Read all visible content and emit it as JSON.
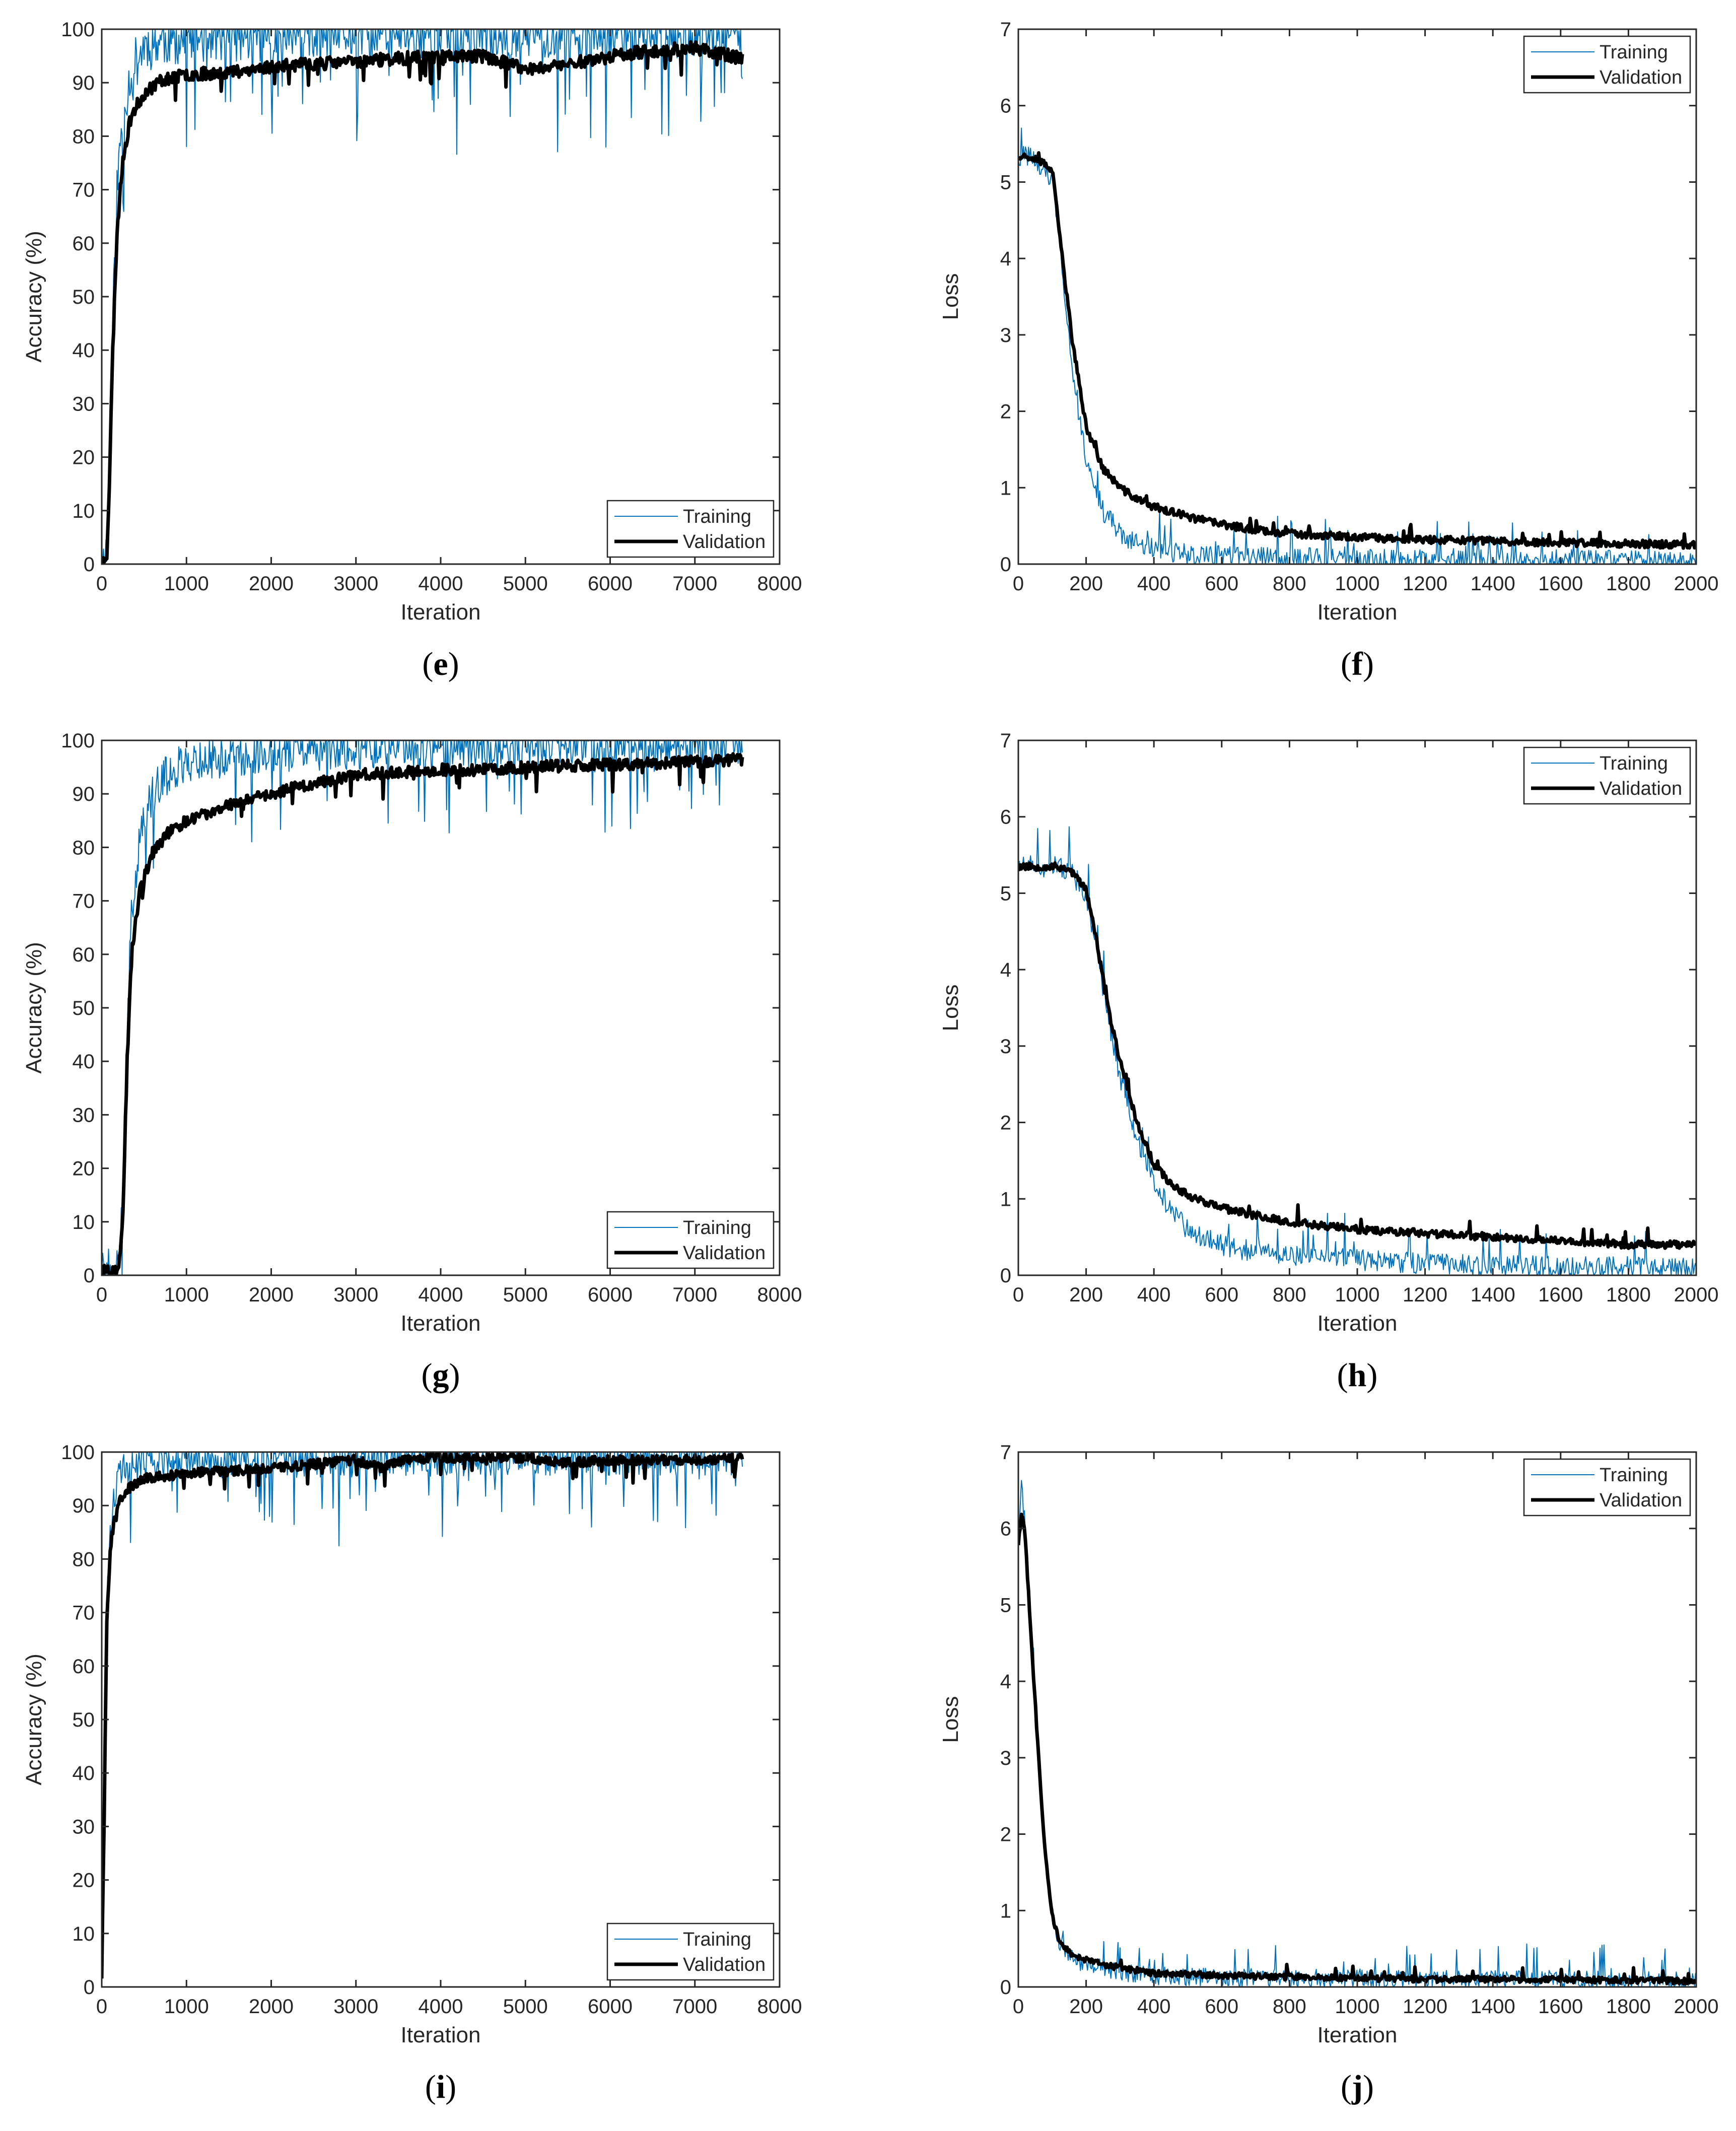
{
  "chart_data": [
    {
      "id": "e",
      "type": "line",
      "caption_letter": "e",
      "xlabel": "Iteration",
      "ylabel": "Accuracy (%)",
      "xlim": [
        0,
        8000
      ],
      "ylim": [
        0,
        100
      ],
      "xticks": [
        0,
        1000,
        2000,
        3000,
        4000,
        5000,
        6000,
        7000,
        8000
      ],
      "yticks": [
        0,
        10,
        20,
        30,
        40,
        50,
        60,
        70,
        80,
        90,
        100
      ],
      "legend": {
        "position": "bottom-right",
        "entries": [
          "Training",
          "Validation"
        ]
      },
      "series": [
        {
          "name": "Training",
          "color": "#0072BD",
          "width": 2,
          "x": [
            0,
            60,
            90,
            130,
            180,
            250,
            350,
            500,
            700,
            1000,
            1500,
            2000,
            3000,
            4000,
            5000,
            6000,
            7000,
            7560
          ],
          "y": [
            0,
            2,
            15,
            45,
            70,
            85,
            92,
            97,
            98,
            98.5,
            99,
            99,
            99.2,
            99.3,
            99.3,
            99.4,
            99.5,
            99.5
          ],
          "noise_amp": 5,
          "noise_seed": 11
        },
        {
          "name": "Validation",
          "color": "#000000",
          "width": 7,
          "x": [
            0,
            60,
            90,
            130,
            180,
            250,
            350,
            500,
            700,
            1000,
            1500,
            2000,
            2500,
            3000,
            3500,
            4000,
            4500,
            5000,
            5500,
            6000,
            6500,
            7000,
            7560
          ],
          "y": [
            0,
            2,
            15,
            40,
            62,
            76,
            84,
            88,
            90.5,
            91.5,
            92,
            93,
            93.5,
            94,
            94.5,
            95,
            95,
            92.5,
            93.5,
            95,
            96,
            96.5,
            94.5
          ],
          "noise_amp": 1.2,
          "noise_seed": 23
        }
      ]
    },
    {
      "id": "f",
      "type": "line",
      "caption_letter": "f",
      "xlabel": "Iteration",
      "ylabel": "Loss",
      "xlim": [
        0,
        2000
      ],
      "ylim": [
        0,
        7
      ],
      "xticks": [
        0,
        200,
        400,
        600,
        800,
        1000,
        1200,
        1400,
        1600,
        1800,
        2000
      ],
      "yticks": [
        0,
        1,
        2,
        3,
        4,
        5,
        6,
        7
      ],
      "legend": {
        "position": "top-right",
        "entries": [
          "Training",
          "Validation"
        ]
      },
      "series": [
        {
          "name": "Training",
          "color": "#0072BD",
          "width": 2,
          "x": [
            0,
            50,
            100,
            130,
            160,
            200,
            250,
            300,
            350,
            400,
            500,
            600,
            800,
            1000,
            1200,
            1500,
            2000
          ],
          "y": [
            5.35,
            5.3,
            5.0,
            3.8,
            2.5,
            1.4,
            0.7,
            0.4,
            0.28,
            0.2,
            0.13,
            0.1,
            0.08,
            0.06,
            0.05,
            0.05,
            0.05
          ],
          "noise_amp": 0.14,
          "noise_seed": 31
        },
        {
          "name": "Validation",
          "color": "#000000",
          "width": 7,
          "x": [
            0,
            50,
            100,
            130,
            160,
            200,
            250,
            300,
            350,
            400,
            500,
            600,
            700,
            800,
            1000,
            1200,
            1400,
            1600,
            1800,
            2000
          ],
          "y": [
            5.35,
            5.32,
            5.15,
            4.0,
            2.9,
            1.8,
            1.25,
            1.0,
            0.85,
            0.75,
            0.62,
            0.52,
            0.45,
            0.4,
            0.35,
            0.32,
            0.3,
            0.28,
            0.27,
            0.25
          ],
          "noise_amp": 0.05,
          "noise_seed": 37
        }
      ]
    },
    {
      "id": "g",
      "type": "line",
      "caption_letter": "g",
      "xlabel": "Iteration",
      "ylabel": "Accuracy (%)",
      "xlim": [
        0,
        8000
      ],
      "ylim": [
        0,
        100
      ],
      "xticks": [
        0,
        1000,
        2000,
        3000,
        4000,
        5000,
        6000,
        7000,
        8000
      ],
      "yticks": [
        0,
        10,
        20,
        30,
        40,
        50,
        60,
        70,
        80,
        90,
        100
      ],
      "legend": {
        "position": "bottom-right",
        "entries": [
          "Training",
          "Validation"
        ]
      },
      "series": [
        {
          "name": "Training",
          "color": "#0072BD",
          "width": 2,
          "x": [
            0,
            150,
            200,
            250,
            300,
            350,
            450,
            600,
            800,
            1000,
            1500,
            2000,
            3000,
            4000,
            5000,
            6000,
            7000,
            7560
          ],
          "y": [
            1,
            1,
            2,
            15,
            45,
            68,
            82,
            90,
            94,
            96,
            97,
            98,
            98.5,
            98.8,
            99,
            99.2,
            99.3,
            99.3
          ],
          "noise_amp": 4,
          "noise_seed": 41
        },
        {
          "name": "Validation",
          "color": "#000000",
          "width": 7,
          "x": [
            0,
            150,
            200,
            250,
            300,
            350,
            450,
            600,
            800,
            1000,
            1500,
            2000,
            2500,
            3000,
            3500,
            4000,
            4500,
            5000,
            6000,
            7000,
            7560
          ],
          "y": [
            1,
            1,
            1,
            12,
            40,
            60,
            72,
            79,
            83,
            85,
            88,
            90,
            92,
            93.5,
            94,
            94.5,
            94.5,
            95,
            95.5,
            96,
            96.5
          ],
          "noise_amp": 1.1,
          "noise_seed": 43
        }
      ]
    },
    {
      "id": "h",
      "type": "line",
      "caption_letter": "h",
      "xlabel": "Iteration",
      "ylabel": "Loss",
      "xlim": [
        0,
        2000
      ],
      "ylim": [
        0,
        7
      ],
      "xticks": [
        0,
        200,
        400,
        600,
        800,
        1000,
        1200,
        1400,
        1600,
        1800,
        2000
      ],
      "yticks": [
        0,
        1,
        2,
        3,
        4,
        5,
        6,
        7
      ],
      "legend": {
        "position": "top-right",
        "entries": [
          "Training",
          "Validation"
        ]
      },
      "series": [
        {
          "name": "Training",
          "color": "#0072BD",
          "width": 2,
          "x": [
            0,
            100,
            150,
            200,
            230,
            260,
            300,
            350,
            400,
            450,
            500,
            600,
            700,
            800,
            1000,
            1200,
            1500,
            2000
          ],
          "y": [
            5.35,
            5.35,
            5.3,
            5.0,
            4.3,
            3.5,
            2.6,
            1.8,
            1.2,
            0.85,
            0.6,
            0.4,
            0.3,
            0.25,
            0.2,
            0.15,
            0.12,
            0.1
          ],
          "noise_amp": 0.14,
          "noise_seed": 51
        },
        {
          "name": "Validation",
          "color": "#000000",
          "width": 7,
          "x": [
            0,
            100,
            150,
            200,
            230,
            260,
            300,
            350,
            400,
            450,
            500,
            600,
            700,
            800,
            1000,
            1200,
            1400,
            1600,
            1800,
            2000
          ],
          "y": [
            5.35,
            5.35,
            5.32,
            5.05,
            4.4,
            3.6,
            2.8,
            2.0,
            1.45,
            1.2,
            1.05,
            0.88,
            0.78,
            0.7,
            0.6,
            0.55,
            0.5,
            0.45,
            0.4,
            0.4
          ],
          "noise_amp": 0.05,
          "noise_seed": 53
        }
      ]
    },
    {
      "id": "i",
      "type": "line",
      "caption_letter": "i",
      "xlabel": "Iteration",
      "ylabel": "Accuracy (%)",
      "xlim": [
        0,
        8000
      ],
      "ylim": [
        0,
        100
      ],
      "xticks": [
        0,
        1000,
        2000,
        3000,
        4000,
        5000,
        6000,
        7000,
        8000
      ],
      "yticks": [
        0,
        10,
        20,
        30,
        40,
        50,
        60,
        70,
        80,
        90,
        100
      ],
      "legend": {
        "position": "bottom-right",
        "entries": [
          "Training",
          "Validation"
        ]
      },
      "series": [
        {
          "name": "Training",
          "color": "#0072BD",
          "width": 2,
          "x": [
            0,
            30,
            60,
            100,
            150,
            200,
            300,
            500,
            1000,
            2000,
            3000,
            4000,
            5000,
            6000,
            7000,
            7560
          ],
          "y": [
            2,
            40,
            70,
            85,
            92,
            95,
            97,
            98,
            98.5,
            98.5,
            98.8,
            99,
            99.2,
            99,
            99,
            99
          ],
          "noise_amp": 3.5,
          "noise_seed": 61
        },
        {
          "name": "Validation",
          "color": "#000000",
          "width": 7,
          "x": [
            0,
            30,
            60,
            100,
            150,
            200,
            300,
            500,
            1000,
            2000,
            3000,
            3300,
            3600,
            4000,
            5000,
            5500,
            6000,
            7000,
            7560
          ],
          "y": [
            2,
            35,
            68,
            82,
            88,
            91,
            93,
            95,
            96,
            97,
            98.5,
            97,
            98.5,
            99,
            99,
            98,
            98.5,
            98.5,
            99
          ],
          "noise_amp": 0.9,
          "noise_seed": 67
        }
      ]
    },
    {
      "id": "j",
      "type": "line",
      "caption_letter": "j",
      "xlabel": "Iteration",
      "ylabel": "Loss",
      "xlim": [
        0,
        2000
      ],
      "ylim": [
        0,
        7
      ],
      "xticks": [
        0,
        200,
        400,
        600,
        800,
        1000,
        1200,
        1400,
        1600,
        1800,
        2000
      ],
      "yticks": [
        0,
        1,
        2,
        3,
        4,
        5,
        6,
        7
      ],
      "legend": {
        "position": "top-right",
        "entries": [
          "Training",
          "Validation"
        ]
      },
      "series": [
        {
          "name": "Training",
          "color": "#0072BD",
          "width": 2,
          "x": [
            0,
            10,
            20,
            40,
            60,
            80,
            100,
            120,
            150,
            200,
            250,
            300,
            400,
            600,
            800,
            1000,
            1200,
            1500,
            2000
          ],
          "y": [
            5.8,
            6.6,
            6.0,
            4.5,
            3.0,
            1.8,
            1.0,
            0.6,
            0.4,
            0.3,
            0.25,
            0.2,
            0.15,
            0.12,
            0.12,
            0.1,
            0.1,
            0.1,
            0.08
          ],
          "noise_amp": 0.12,
          "noise_seed": 71
        },
        {
          "name": "Validation",
          "color": "#000000",
          "width": 7,
          "x": [
            0,
            10,
            20,
            40,
            60,
            80,
            100,
            120,
            150,
            200,
            250,
            300,
            400,
            600,
            800,
            1000,
            1200,
            1500,
            2000
          ],
          "y": [
            5.8,
            6.2,
            5.9,
            4.4,
            3.0,
            1.7,
            0.95,
            0.6,
            0.45,
            0.35,
            0.3,
            0.25,
            0.18,
            0.15,
            0.13,
            0.12,
            0.1,
            0.1,
            0.08
          ],
          "noise_amp": 0.04,
          "noise_seed": 73
        }
      ]
    }
  ]
}
